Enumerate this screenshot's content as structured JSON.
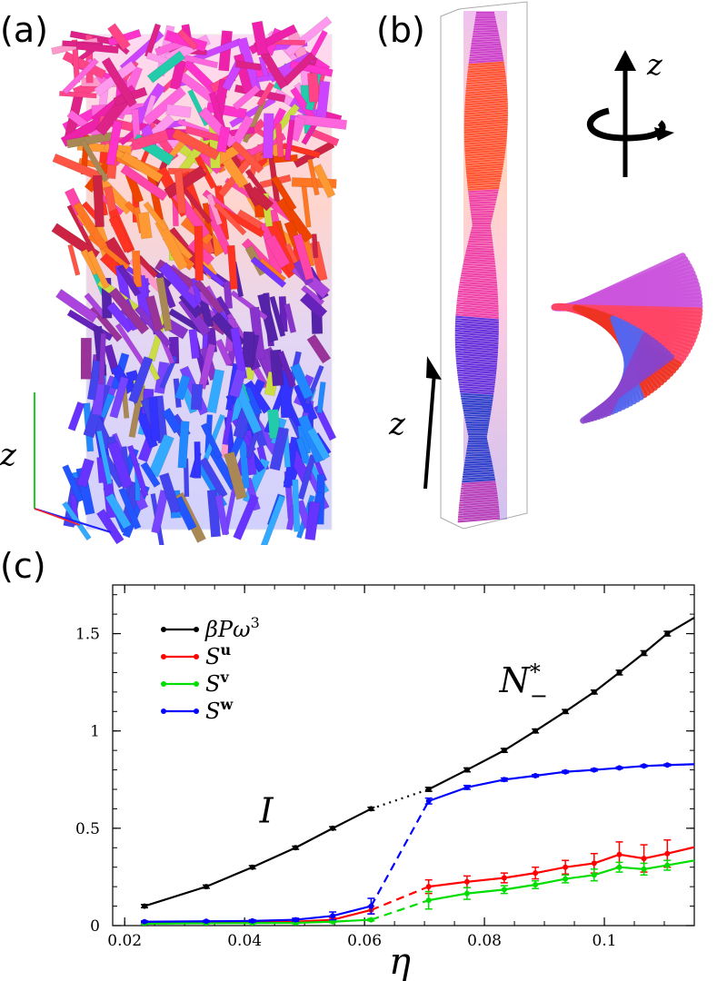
{
  "panels": {
    "a_label": "(a)",
    "b_label": "(b)",
    "c_label": "(c)",
    "a_axis_label": "z",
    "b_axis_label": "z",
    "b_rotation_label": "z"
  },
  "colors": {
    "pressure": "#000000",
    "s_u": "#ff0000",
    "s_v": "#00dd00",
    "s_w": "#0000ff"
  },
  "chart_data": {
    "type": "line",
    "xlabel": "η",
    "ylabel": "",
    "xlim": [
      0.018,
      0.115
    ],
    "ylim": [
      0,
      1.75
    ],
    "xticks": [
      0.02,
      0.04,
      0.06,
      0.08,
      0.1
    ],
    "xtick_labels": [
      "0.02",
      "0.04",
      "0.06",
      "0.08",
      "0.1"
    ],
    "yticks": [
      0,
      0.5,
      1,
      1.5
    ],
    "ytick_labels": [
      "0",
      "0.5",
      "1",
      "1.5"
    ],
    "legend_position": "top-left",
    "annotations": [
      {
        "text": "I",
        "x": 0.0425,
        "y": 0.53
      },
      {
        "text": "N*",
        "sub": "−",
        "x": 0.0825,
        "y": 1.2
      }
    ],
    "series": [
      {
        "name": "βPω³",
        "color": "#000000",
        "transition_style": "dotted",
        "x": [
          0.0233,
          0.0336,
          0.0413,
          0.0485,
          0.0547,
          0.0611,
          0.0707,
          0.0771,
          0.0833,
          0.0885,
          0.0935,
          0.0983,
          0.1025,
          0.1066,
          0.1105,
          0.116
        ],
        "y": [
          0.1,
          0.2,
          0.3,
          0.4,
          0.5,
          0.6,
          0.7,
          0.8,
          0.9,
          1.0,
          1.1,
          1.2,
          1.3,
          1.4,
          1.5,
          1.6
        ],
        "err": [
          0.008,
          0.008,
          0.008,
          0.008,
          0.008,
          0.008,
          0.01,
          0.01,
          0.01,
          0.01,
          0.01,
          0.01,
          0.012,
          0.012,
          0.012,
          0.012
        ]
      },
      {
        "name": "Su",
        "color": "#ff0000",
        "transition_style": "dashed",
        "x": [
          0.0233,
          0.0336,
          0.0413,
          0.0485,
          0.0547,
          0.0611,
          0.0707,
          0.0771,
          0.0833,
          0.0885,
          0.0935,
          0.0983,
          0.1025,
          0.1066,
          0.1105,
          0.116
        ],
        "y": [
          0.015,
          0.017,
          0.018,
          0.02,
          0.03,
          0.08,
          0.2,
          0.225,
          0.245,
          0.27,
          0.3,
          0.32,
          0.365,
          0.345,
          0.37,
          0.41
        ],
        "err": [
          0.004,
          0.004,
          0.004,
          0.006,
          0.01,
          0.02,
          0.035,
          0.03,
          0.025,
          0.03,
          0.035,
          0.05,
          0.065,
          0.07,
          0.07,
          0.07
        ]
      },
      {
        "name": "Sv",
        "color": "#00dd00",
        "transition_style": "dashed",
        "x": [
          0.0233,
          0.0336,
          0.0413,
          0.0485,
          0.0547,
          0.0611,
          0.0707,
          0.0771,
          0.0833,
          0.0885,
          0.0935,
          0.0983,
          0.1025,
          0.1066,
          0.1105,
          0.116
        ],
        "y": [
          0.01,
          0.012,
          0.013,
          0.014,
          0.02,
          0.03,
          0.13,
          0.165,
          0.185,
          0.21,
          0.24,
          0.26,
          0.3,
          0.29,
          0.31,
          0.34
        ],
        "err": [
          0.003,
          0.003,
          0.003,
          0.004,
          0.005,
          0.006,
          0.045,
          0.03,
          0.02,
          0.02,
          0.02,
          0.03,
          0.025,
          0.03,
          0.025,
          0.02
        ]
      },
      {
        "name": "Sw",
        "color": "#0000ff",
        "transition_style": "dashed",
        "x": [
          0.0233,
          0.0336,
          0.0413,
          0.0485,
          0.0547,
          0.0611,
          0.0707,
          0.0771,
          0.0833,
          0.0885,
          0.0935,
          0.0983,
          0.1025,
          0.1066,
          0.1105,
          0.116
        ],
        "y": [
          0.02,
          0.022,
          0.024,
          0.03,
          0.05,
          0.1,
          0.64,
          0.71,
          0.75,
          0.77,
          0.79,
          0.8,
          0.81,
          0.82,
          0.825,
          0.83
        ],
        "err": [
          0.004,
          0.004,
          0.006,
          0.008,
          0.02,
          0.04,
          0.015,
          0.01,
          0.008,
          0.006,
          0.006,
          0.006,
          0.005,
          0.005,
          0.005,
          0.005
        ]
      }
    ],
    "legend": [
      {
        "label": "βPω",
        "sup": "3",
        "color": "#000000"
      },
      {
        "label": "S",
        "sup": "u",
        "color": "#ff0000"
      },
      {
        "label": "S",
        "sup": "v",
        "color": "#00dd00"
      },
      {
        "label": "S",
        "sup": "w",
        "color": "#0000ff"
      }
    ]
  }
}
